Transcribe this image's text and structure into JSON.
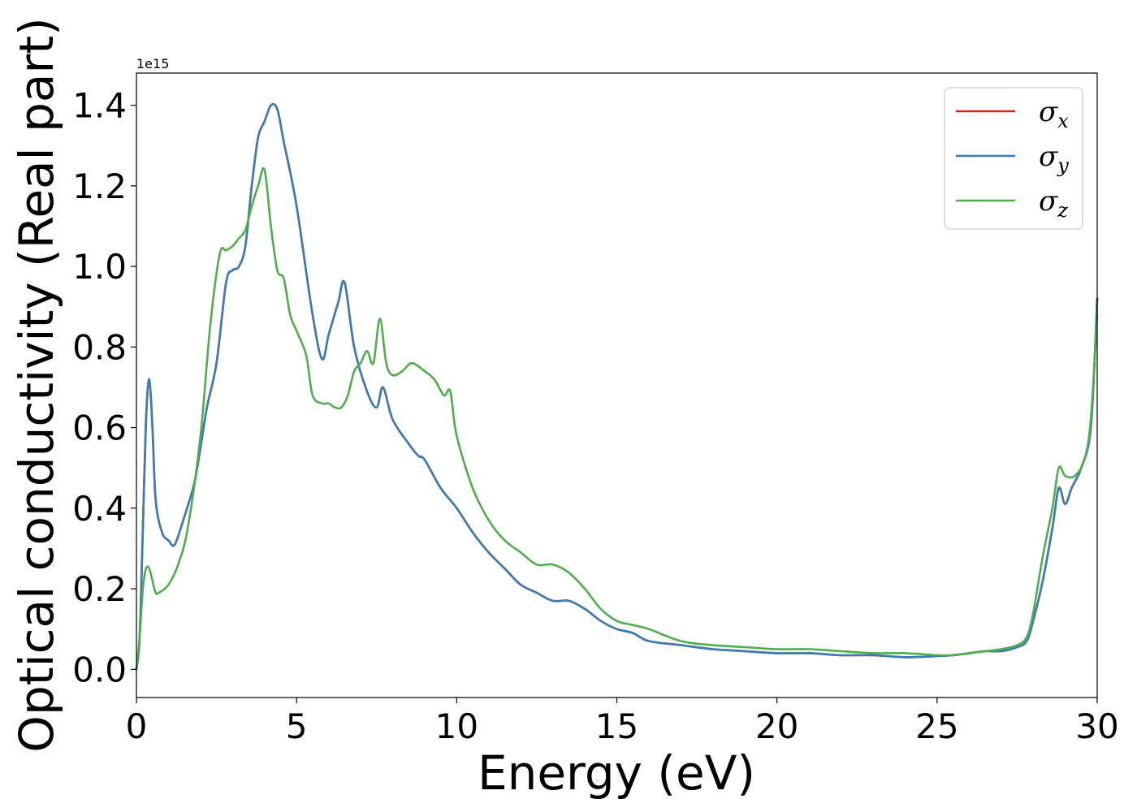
{
  "chart_data": {
    "type": "line",
    "title": "",
    "xlabel": "Energy (eV)",
    "ylabel": "Optical conductivity (Real part)",
    "y_offset_text": "1e15",
    "xlim": [
      0,
      30
    ],
    "ylim": [
      -0.07,
      1.48
    ],
    "xticks": [
      0,
      5,
      10,
      15,
      20,
      25,
      30
    ],
    "xtick_labels": [
      "0",
      "5",
      "10",
      "15",
      "20",
      "25",
      "30"
    ],
    "yticks": [
      0.0,
      0.2,
      0.4,
      0.6,
      0.8,
      1.0,
      1.2,
      1.4
    ],
    "ytick_labels": [
      "0.0",
      "0.2",
      "0.4",
      "0.6",
      "0.8",
      "1.0",
      "1.2",
      "1.4"
    ],
    "grid": false,
    "legend_position": "top-right",
    "series": [
      {
        "name": "σx",
        "symbol": "σ",
        "subscript": "x",
        "color": "#e41a1c",
        "x": [
          0,
          0.1,
          0.2,
          0.3,
          0.4,
          0.5,
          0.6,
          0.8,
          1.0,
          1.2,
          1.5,
          1.8,
          2.0,
          2.2,
          2.5,
          2.8,
          3.0,
          3.2,
          3.4,
          3.6,
          3.8,
          4.0,
          4.2,
          4.4,
          4.6,
          5.0,
          5.5,
          5.8,
          6.0,
          6.3,
          6.5,
          6.8,
          7.2,
          7.5,
          7.7,
          8.0,
          8.5,
          8.8,
          9.0,
          9.5,
          10.0,
          10.5,
          11.0,
          11.5,
          12.0,
          12.5,
          13.0,
          13.5,
          14.0,
          14.5,
          15.0,
          15.5,
          16.0,
          17.0,
          18.0,
          19.0,
          20.0,
          21.0,
          22.0,
          23.0,
          24.0,
          25.0,
          25.5,
          26.0,
          26.5,
          27.0,
          27.5,
          27.8,
          28.0,
          28.3,
          28.6,
          28.8,
          29.0,
          29.2,
          29.5,
          29.8,
          30.0
        ],
        "y": [
          0.0,
          0.08,
          0.35,
          0.62,
          0.72,
          0.6,
          0.42,
          0.34,
          0.32,
          0.31,
          0.38,
          0.46,
          0.55,
          0.65,
          0.76,
          0.96,
          0.99,
          1.0,
          1.05,
          1.2,
          1.32,
          1.36,
          1.4,
          1.39,
          1.31,
          1.15,
          0.88,
          0.77,
          0.83,
          0.91,
          0.96,
          0.8,
          0.69,
          0.65,
          0.7,
          0.62,
          0.56,
          0.53,
          0.52,
          0.45,
          0.4,
          0.34,
          0.29,
          0.25,
          0.21,
          0.19,
          0.17,
          0.17,
          0.15,
          0.12,
          0.1,
          0.09,
          0.07,
          0.06,
          0.05,
          0.045,
          0.04,
          0.04,
          0.035,
          0.035,
          0.03,
          0.033,
          0.035,
          0.04,
          0.045,
          0.045,
          0.055,
          0.07,
          0.12,
          0.22,
          0.35,
          0.45,
          0.41,
          0.45,
          0.5,
          0.6,
          0.92
        ]
      },
      {
        "name": "σy",
        "symbol": "σ",
        "subscript": "y",
        "color": "#377eb8",
        "x": [
          0,
          0.1,
          0.2,
          0.3,
          0.4,
          0.5,
          0.6,
          0.8,
          1.0,
          1.2,
          1.5,
          1.8,
          2.0,
          2.2,
          2.5,
          2.8,
          3.0,
          3.2,
          3.4,
          3.6,
          3.8,
          4.0,
          4.2,
          4.4,
          4.6,
          5.0,
          5.5,
          5.8,
          6.0,
          6.3,
          6.5,
          6.8,
          7.2,
          7.5,
          7.7,
          8.0,
          8.5,
          8.8,
          9.0,
          9.5,
          10.0,
          10.5,
          11.0,
          11.5,
          12.0,
          12.5,
          13.0,
          13.5,
          14.0,
          14.5,
          15.0,
          15.5,
          16.0,
          17.0,
          18.0,
          19.0,
          20.0,
          21.0,
          22.0,
          23.0,
          24.0,
          25.0,
          25.5,
          26.0,
          26.5,
          27.0,
          27.5,
          27.8,
          28.0,
          28.3,
          28.6,
          28.8,
          29.0,
          29.2,
          29.5,
          29.8,
          30.0
        ],
        "y": [
          0.0,
          0.08,
          0.35,
          0.62,
          0.72,
          0.6,
          0.42,
          0.34,
          0.32,
          0.31,
          0.38,
          0.46,
          0.55,
          0.65,
          0.76,
          0.96,
          0.99,
          1.0,
          1.05,
          1.2,
          1.32,
          1.36,
          1.4,
          1.39,
          1.31,
          1.15,
          0.88,
          0.77,
          0.83,
          0.91,
          0.96,
          0.8,
          0.69,
          0.65,
          0.7,
          0.62,
          0.56,
          0.53,
          0.52,
          0.45,
          0.4,
          0.34,
          0.29,
          0.25,
          0.21,
          0.19,
          0.17,
          0.17,
          0.15,
          0.12,
          0.1,
          0.09,
          0.07,
          0.06,
          0.05,
          0.045,
          0.04,
          0.04,
          0.035,
          0.035,
          0.03,
          0.033,
          0.035,
          0.04,
          0.045,
          0.045,
          0.055,
          0.07,
          0.12,
          0.22,
          0.35,
          0.45,
          0.41,
          0.45,
          0.5,
          0.6,
          0.92
        ]
      },
      {
        "name": "σz",
        "symbol": "σ",
        "subscript": "z",
        "color": "#4daf4a",
        "x": [
          0,
          0.1,
          0.2,
          0.3,
          0.4,
          0.5,
          0.6,
          0.7,
          1.0,
          1.3,
          1.6,
          2.0,
          2.3,
          2.6,
          2.8,
          3.0,
          3.2,
          3.4,
          3.6,
          3.8,
          4.0,
          4.2,
          4.4,
          4.6,
          4.8,
          5.0,
          5.3,
          5.5,
          5.8,
          6.0,
          6.2,
          6.4,
          6.6,
          6.8,
          7.0,
          7.2,
          7.4,
          7.6,
          7.8,
          8.0,
          8.3,
          8.6,
          9.0,
          9.3,
          9.6,
          9.8,
          10.0,
          10.5,
          11.0,
          11.5,
          12.0,
          12.5,
          13.0,
          13.5,
          14.0,
          14.5,
          15.0,
          15.5,
          16.0,
          17.0,
          18.0,
          19.0,
          20.0,
          21.0,
          22.0,
          23.0,
          24.0,
          25.0,
          25.5,
          26.0,
          26.5,
          27.0,
          27.5,
          27.8,
          28.0,
          28.3,
          28.6,
          28.8,
          29.0,
          29.3,
          29.6,
          29.8,
          30.0
        ],
        "y": [
          0.0,
          0.08,
          0.2,
          0.25,
          0.25,
          0.22,
          0.19,
          0.19,
          0.21,
          0.26,
          0.35,
          0.58,
          0.85,
          1.03,
          1.04,
          1.05,
          1.07,
          1.09,
          1.15,
          1.2,
          1.24,
          1.1,
          0.99,
          0.97,
          0.88,
          0.84,
          0.78,
          0.68,
          0.66,
          0.66,
          0.65,
          0.65,
          0.68,
          0.74,
          0.76,
          0.79,
          0.76,
          0.87,
          0.76,
          0.73,
          0.74,
          0.76,
          0.74,
          0.72,
          0.68,
          0.69,
          0.58,
          0.45,
          0.37,
          0.32,
          0.29,
          0.26,
          0.26,
          0.24,
          0.2,
          0.15,
          0.12,
          0.11,
          0.1,
          0.07,
          0.06,
          0.055,
          0.05,
          0.05,
          0.045,
          0.04,
          0.04,
          0.035,
          0.035,
          0.04,
          0.045,
          0.05,
          0.06,
          0.08,
          0.14,
          0.28,
          0.4,
          0.5,
          0.48,
          0.48,
          0.52,
          0.62,
          0.88
        ]
      }
    ]
  }
}
